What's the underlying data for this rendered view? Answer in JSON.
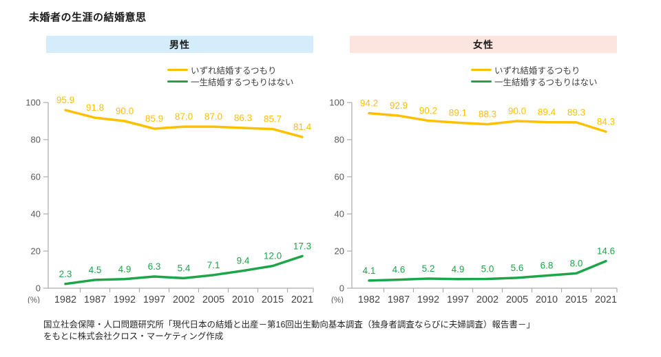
{
  "title": "未婚者の生涯の結婚意思",
  "source": {
    "line1": "国立社会保障・人口問題研究所「現代日本の結婚と出産－第16回出生動向基本調査（独身者調査ならびに夫婦調査）報告書－」",
    "line2": "をもとに株式会社クロス・マーケティング作成"
  },
  "chart_data": [
    {
      "type": "line",
      "title": "男性",
      "header_bg": "#D5ECFA",
      "unit_label": "(%)",
      "categories": [
        "1982",
        "1987",
        "1992",
        "1997",
        "2002",
        "2005",
        "2010",
        "2015",
        "2021"
      ],
      "ylim": [
        0,
        100
      ],
      "yticks": [
        0,
        20,
        40,
        60,
        80,
        100
      ],
      "grid": false,
      "legend_position": "top-right",
      "series": [
        {
          "name": "いずれ結婚するつもり",
          "color": "#FFC000",
          "values": [
            95.9,
            91.8,
            90.0,
            85.9,
            87.0,
            87.0,
            86.3,
            85.7,
            81.4
          ]
        },
        {
          "name": "一生結婚するつもりはない",
          "color": "#1DA649",
          "values": [
            2.3,
            4.5,
            4.9,
            6.3,
            5.4,
            7.1,
            9.4,
            12.0,
            17.3
          ]
        }
      ]
    },
    {
      "type": "line",
      "title": "女性",
      "header_bg": "#FCE4DF",
      "unit_label": "(%)",
      "categories": [
        "1982",
        "1987",
        "1992",
        "1997",
        "2002",
        "2005",
        "2010",
        "2015",
        "2021"
      ],
      "ylim": [
        0,
        100
      ],
      "yticks": [
        0,
        20,
        40,
        60,
        80,
        100
      ],
      "grid": false,
      "legend_position": "top-right",
      "series": [
        {
          "name": "いずれ結婚するつもり",
          "color": "#FFC000",
          "values": [
            94.2,
            92.9,
            90.2,
            89.1,
            88.3,
            90.0,
            89.4,
            89.3,
            84.3
          ]
        },
        {
          "name": "一生結婚するつもりはない",
          "color": "#1DA649",
          "values": [
            4.1,
            4.6,
            5.2,
            4.9,
            5.0,
            5.6,
            6.8,
            8.0,
            14.6
          ]
        }
      ]
    }
  ]
}
